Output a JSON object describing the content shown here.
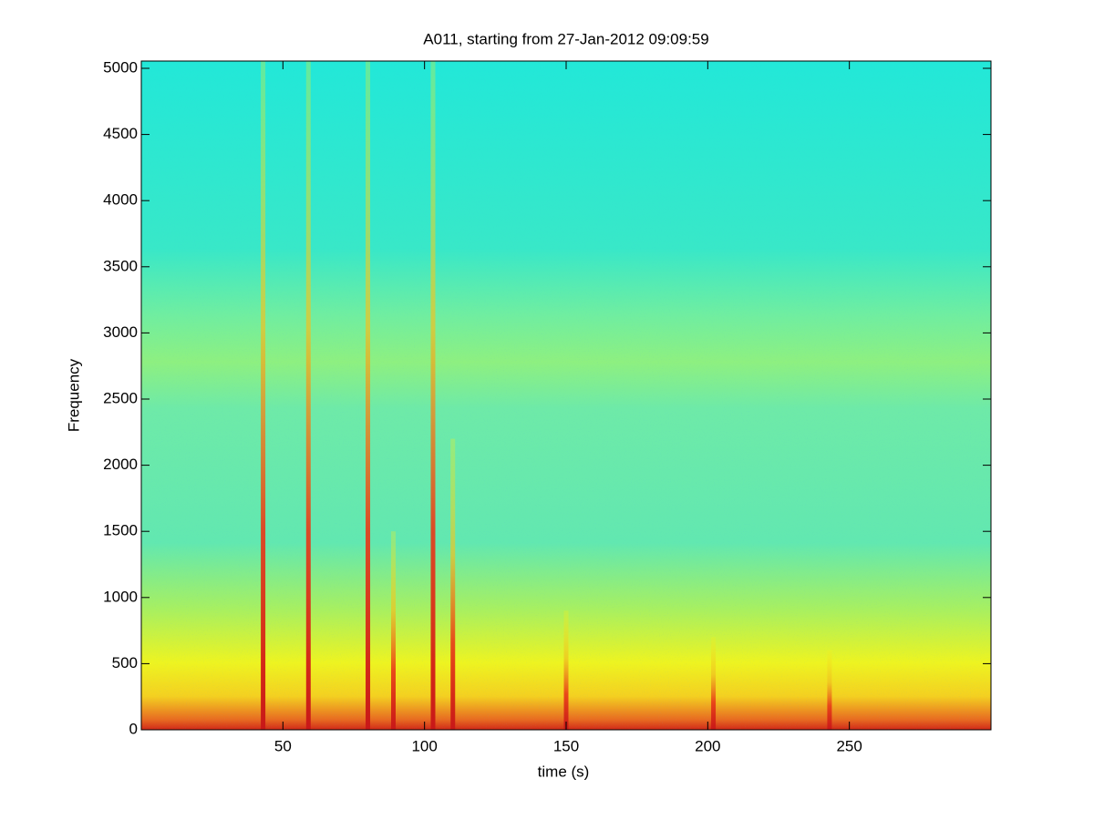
{
  "chart_data": {
    "type": "spectrogram",
    "title": "A011, starting from 27-Jan-2012 09:09:59",
    "xlabel": "time (s)",
    "ylabel": "Frequency",
    "xlim": [
      0,
      300
    ],
    "ylim": [
      0,
      5055
    ],
    "xticks": [
      50,
      100,
      150,
      200,
      250
    ],
    "yticks": [
      0,
      500,
      1000,
      1500,
      2000,
      2500,
      3000,
      3500,
      4000,
      4500,
      5000
    ],
    "burst_times": [
      43,
      59,
      80,
      89,
      103,
      110,
      150,
      202,
      243
    ],
    "burst_top_freqs": [
      5055,
      5055,
      5055,
      1500,
      5055,
      2200,
      900,
      700,
      600
    ]
  }
}
